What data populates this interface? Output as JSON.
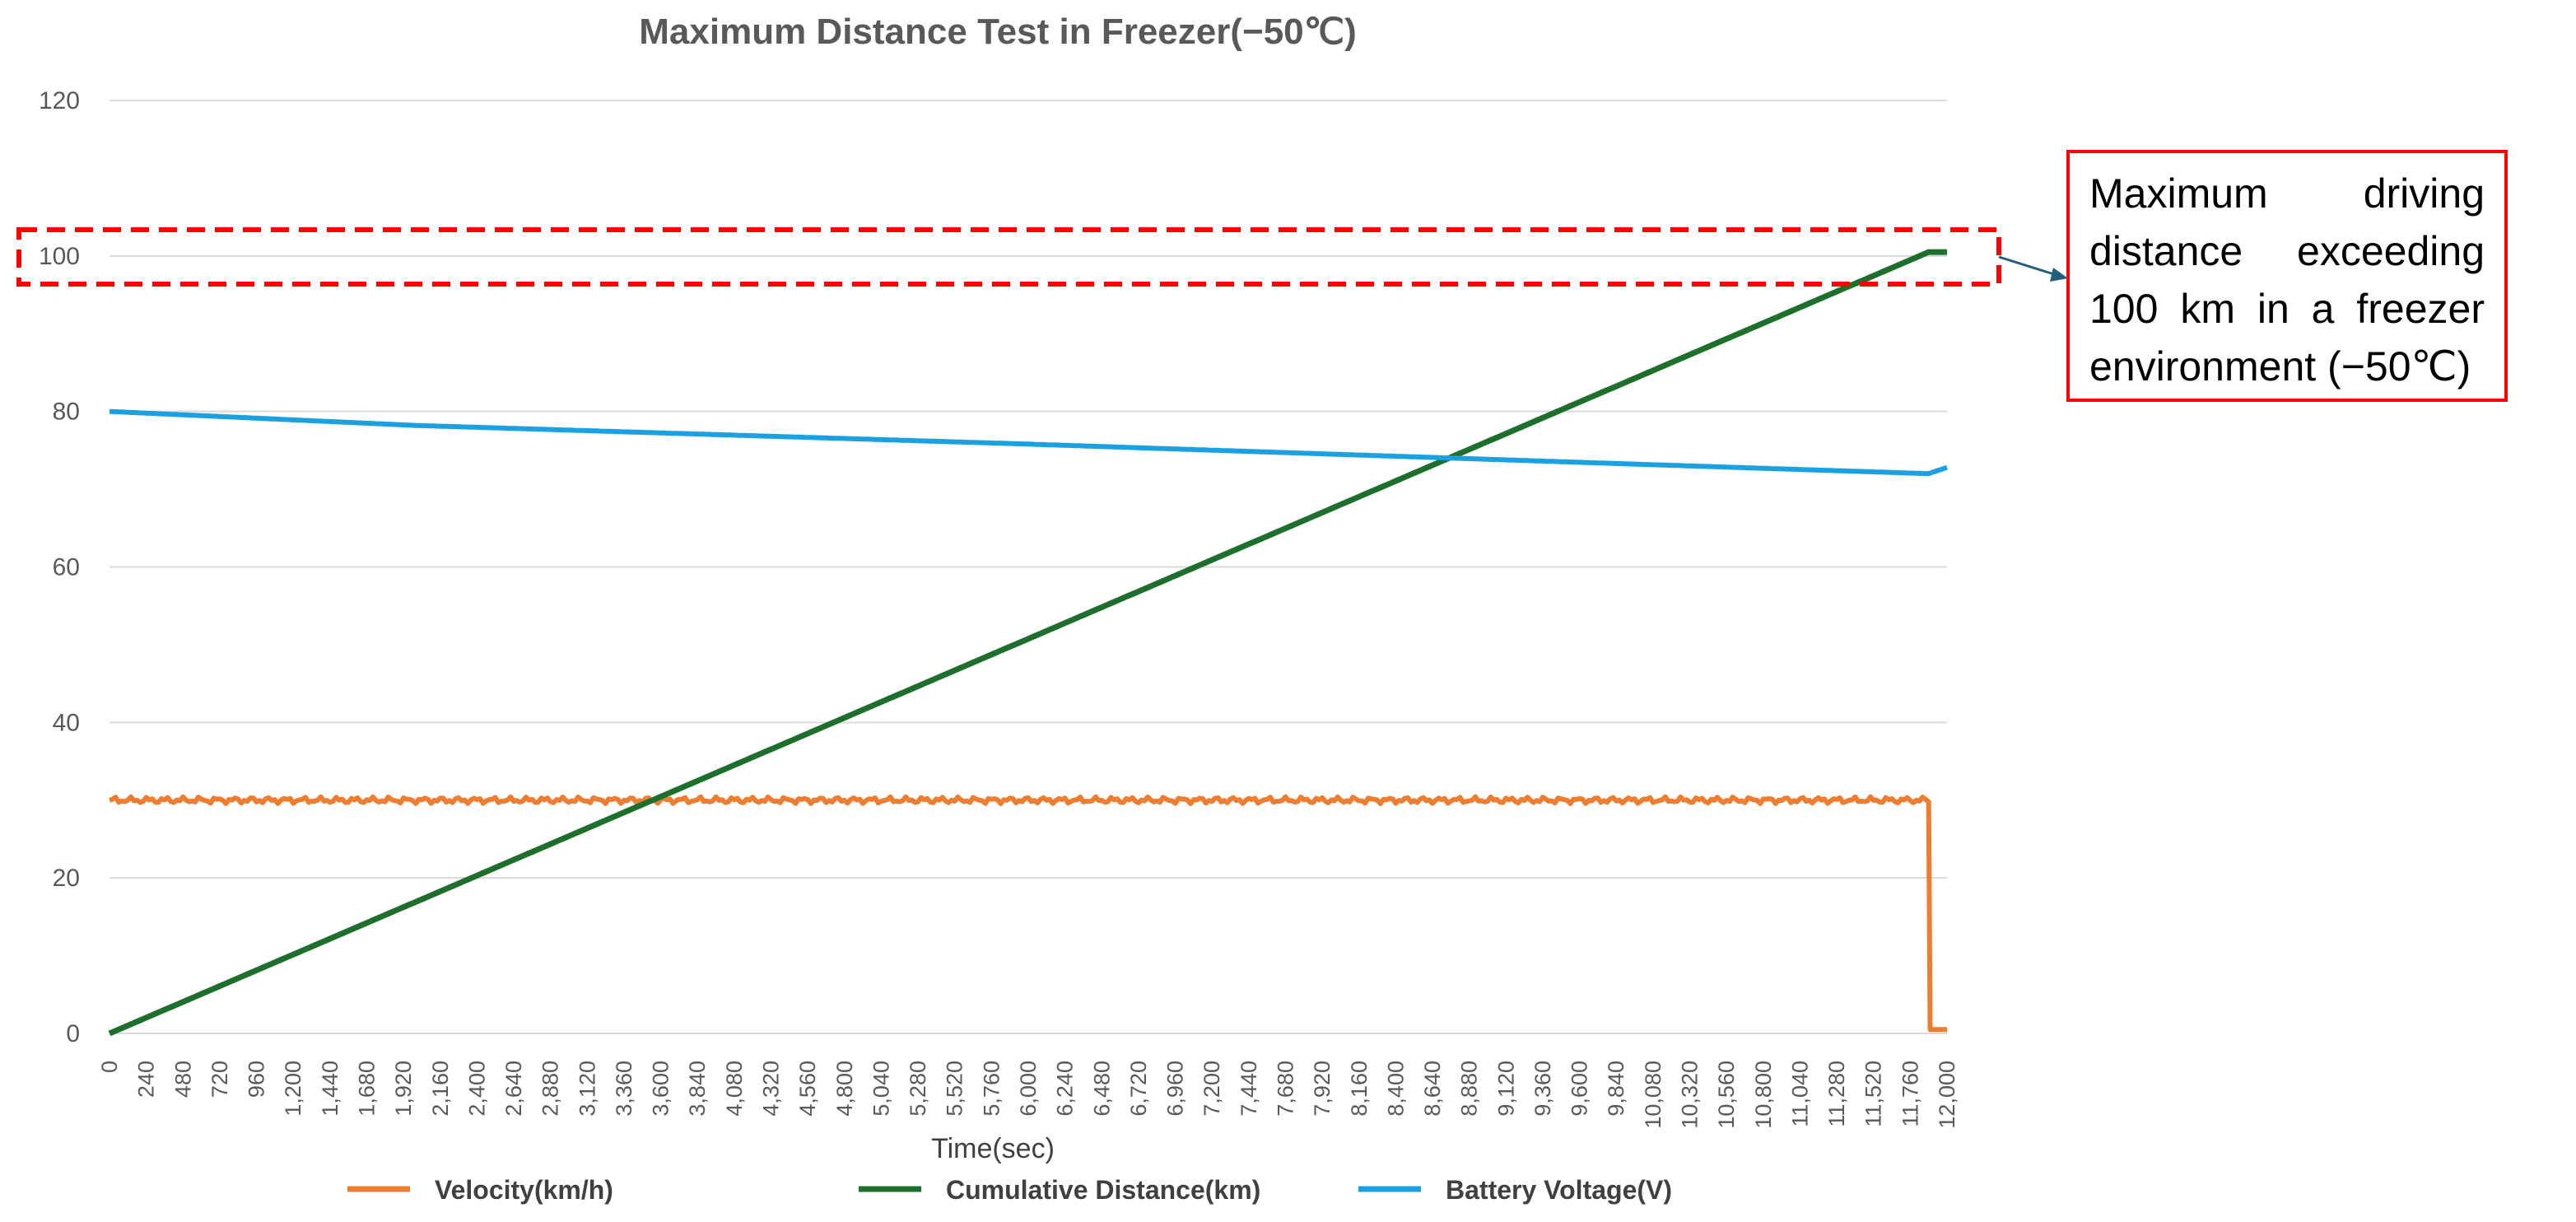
{
  "chart_data": {
    "type": "line",
    "title": "Maximum Distance Test in Freezer(−50℃)",
    "xlabel": "Time(sec)",
    "ylabel": "",
    "xlim": [
      0,
      12000
    ],
    "ylim": [
      0,
      120
    ],
    "grid": true,
    "legend_position": "bottom",
    "y_ticks": [
      "0",
      "20",
      "40",
      "60",
      "80",
      "100",
      "120"
    ],
    "x_ticks": [
      "0",
      "240",
      "480",
      "720",
      "960",
      "1,200",
      "1,440",
      "1,680",
      "1,920",
      "2,160",
      "2,400",
      "2,640",
      "2,880",
      "3,120",
      "3,360",
      "3,600",
      "3,840",
      "4,080",
      "4,320",
      "4,560",
      "4,800",
      "5,040",
      "5,280",
      "5,520",
      "5,760",
      "6,000",
      "6,240",
      "6,480",
      "6,720",
      "6,960",
      "7,200",
      "7,440",
      "7,680",
      "7,920",
      "8,160",
      "8,400",
      "8,640",
      "8,880",
      "9,120",
      "9,360",
      "9,600",
      "9,840",
      "10,080",
      "10,320",
      "10,560",
      "10,800",
      "11,040",
      "11,280",
      "11,520",
      "11,760",
      "12,000"
    ],
    "series": [
      {
        "name": "Velocity(km/h)",
        "color": "#ed7d31",
        "x": [
          0,
          11880,
          11890,
          12000
        ],
        "y": [
          30,
          30,
          0.5,
          0.5
        ]
      },
      {
        "name": "Cumulative Distance(km)",
        "color": "#1e6f2e",
        "x": [
          0,
          11880,
          12000
        ],
        "y": [
          0,
          100.5,
          100.5
        ]
      },
      {
        "name": "Battery Voltage(V)",
        "color": "#1ba1e2",
        "x": [
          0,
          2000,
          4000,
          6000,
          8000,
          10000,
          11880,
          12000
        ],
        "y": [
          80,
          78.2,
          77,
          75.8,
          74.5,
          73.2,
          72,
          72.8
        ]
      }
    ],
    "annotations": [
      {
        "text": "Maximum driving distance exceeding 100 km in a freezer environment (−50℃)",
        "highlight_y_range": [
          97,
          103
        ]
      }
    ]
  }
}
